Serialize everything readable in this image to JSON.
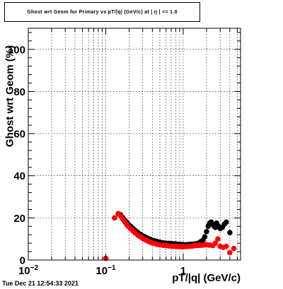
{
  "chart_data": {
    "type": "scatter",
    "title": "Ghost wrt Geom for Primary vs pT/|q| (GeV/c) at | η | <= 1.0",
    "xlabel": "pT/|q| (GeV/c)",
    "ylabel": "Ghost wrt Geom (%)",
    "x_scale": "log",
    "xlim": [
      0.01,
      5.5
    ],
    "ylim": [
      0,
      110
    ],
    "x_ticks": [
      {
        "value": 0.01,
        "base": "10",
        "exp": "−2"
      },
      {
        "value": 0.1,
        "base": "10",
        "exp": "−1"
      },
      {
        "value": 1,
        "base": "1",
        "exp": ""
      }
    ],
    "y_ticks": [
      0,
      20,
      40,
      60,
      80,
      100
    ],
    "grid": true,
    "series": [
      {
        "color": "#000000",
        "points": [
          [
            0.1,
            0.8
          ],
          [
            0.13,
            20.0
          ],
          [
            0.145,
            22.0
          ],
          [
            0.155,
            21.5
          ],
          [
            0.165,
            20.2
          ],
          [
            0.175,
            19.0
          ],
          [
            0.185,
            18.0
          ],
          [
            0.195,
            17.0
          ],
          [
            0.21,
            16.0
          ],
          [
            0.225,
            15.0
          ],
          [
            0.24,
            14.0
          ],
          [
            0.26,
            13.0
          ],
          [
            0.28,
            12.2
          ],
          [
            0.3,
            11.5
          ],
          [
            0.32,
            11.0
          ],
          [
            0.34,
            10.5
          ],
          [
            0.36,
            10.0
          ],
          [
            0.38,
            9.7
          ],
          [
            0.4,
            9.4
          ],
          [
            0.43,
            9.1
          ],
          [
            0.46,
            8.8
          ],
          [
            0.5,
            8.5
          ],
          [
            0.55,
            8.2
          ],
          [
            0.6,
            8.0
          ],
          [
            0.65,
            7.9
          ],
          [
            0.7,
            7.8
          ],
          [
            0.75,
            7.7
          ],
          [
            0.8,
            7.6
          ],
          [
            0.85,
            7.5
          ],
          [
            0.9,
            7.4
          ],
          [
            0.95,
            7.4
          ],
          [
            1.0,
            7.3
          ],
          [
            1.1,
            7.3
          ],
          [
            1.2,
            7.4
          ],
          [
            1.3,
            7.5
          ],
          [
            1.4,
            7.6
          ],
          [
            1.5,
            7.8
          ],
          [
            1.6,
            8.2
          ],
          [
            1.7,
            8.8
          ],
          [
            1.8,
            9.5
          ],
          [
            1.9,
            11.0
          ],
          [
            2.0,
            13.5
          ],
          [
            2.1,
            16.0
          ],
          [
            2.2,
            17.5
          ],
          [
            2.3,
            18.0
          ],
          [
            2.4,
            17.0
          ],
          [
            2.5,
            16.0
          ],
          [
            2.6,
            15.5
          ],
          [
            2.7,
            17.5
          ],
          [
            2.85,
            16.0
          ],
          [
            3.0,
            15.0
          ],
          [
            3.2,
            15.5
          ],
          [
            3.4,
            17.0
          ],
          [
            3.6,
            18.0
          ],
          [
            4.0,
            13.0
          ]
        ]
      },
      {
        "color": "#ff0000",
        "points": [
          [
            0.1,
            0.8
          ],
          [
            0.13,
            20.0
          ],
          [
            0.145,
            22.0
          ],
          [
            0.155,
            21.0
          ],
          [
            0.165,
            19.5
          ],
          [
            0.175,
            18.2
          ],
          [
            0.185,
            17.0
          ],
          [
            0.195,
            16.0
          ],
          [
            0.21,
            14.8
          ],
          [
            0.225,
            13.8
          ],
          [
            0.24,
            12.8
          ],
          [
            0.26,
            11.8
          ],
          [
            0.28,
            11.0
          ],
          [
            0.3,
            10.3
          ],
          [
            0.32,
            9.7
          ],
          [
            0.34,
            9.2
          ],
          [
            0.36,
            8.8
          ],
          [
            0.38,
            8.4
          ],
          [
            0.4,
            8.1
          ],
          [
            0.43,
            7.8
          ],
          [
            0.46,
            7.5
          ],
          [
            0.5,
            7.2
          ],
          [
            0.55,
            7.0
          ],
          [
            0.6,
            6.8
          ],
          [
            0.65,
            6.7
          ],
          [
            0.7,
            6.6
          ],
          [
            0.75,
            6.5
          ],
          [
            0.8,
            6.5
          ],
          [
            0.85,
            6.4
          ],
          [
            0.9,
            6.4
          ],
          [
            0.95,
            6.3
          ],
          [
            1.0,
            6.3
          ],
          [
            1.1,
            6.4
          ],
          [
            1.2,
            6.5
          ],
          [
            1.3,
            6.6
          ],
          [
            1.4,
            6.8
          ],
          [
            1.5,
            6.9
          ],
          [
            1.6,
            7.0
          ],
          [
            1.7,
            7.0
          ],
          [
            1.8,
            7.1
          ],
          [
            1.9,
            7.2
          ],
          [
            2.0,
            7.3
          ],
          [
            2.1,
            7.2
          ],
          [
            2.2,
            7.1
          ],
          [
            2.4,
            6.8
          ],
          [
            2.6,
            8.0
          ],
          [
            2.8,
            10.0
          ],
          [
            3.0,
            6.5
          ],
          [
            3.3,
            6.0
          ],
          [
            3.6,
            6.5
          ],
          [
            4.0,
            3.5
          ],
          [
            4.5,
            5.5
          ]
        ]
      }
    ]
  },
  "footer": {
    "datestamp": "Tue Dec 21 12:54:33 2021"
  }
}
